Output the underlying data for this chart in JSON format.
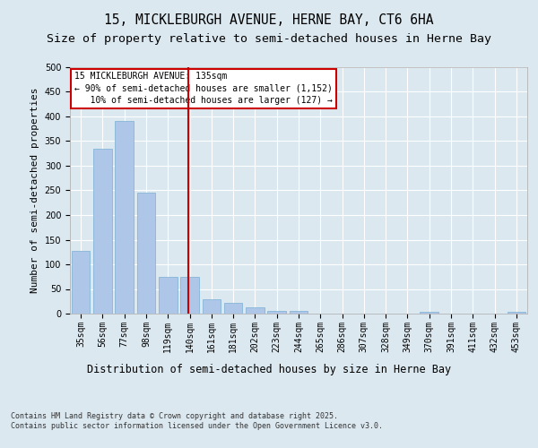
{
  "title1": "15, MICKLEBURGH AVENUE, HERNE BAY, CT6 6HA",
  "title2": "Size of property relative to semi-detached houses in Herne Bay",
  "xlabel": "Distribution of semi-detached houses by size in Herne Bay",
  "ylabel": "Number of semi-detached properties",
  "categories": [
    "35sqm",
    "56sqm",
    "77sqm",
    "98sqm",
    "119sqm",
    "140sqm",
    "161sqm",
    "181sqm",
    "202sqm",
    "223sqm",
    "244sqm",
    "265sqm",
    "286sqm",
    "307sqm",
    "328sqm",
    "349sqm",
    "370sqm",
    "391sqm",
    "411sqm",
    "432sqm",
    "453sqm"
  ],
  "values": [
    127,
    335,
    390,
    245,
    75,
    75,
    30,
    22,
    12,
    5,
    5,
    0,
    0,
    0,
    0,
    0,
    4,
    0,
    0,
    0,
    4
  ],
  "bar_color": "#aec6e8",
  "bar_edge_color": "#7aafd4",
  "vline_color": "#cc0000",
  "vline_x_index": 5,
  "annotation_text": "15 MICKLEBURGH AVENUE: 135sqm\n← 90% of semi-detached houses are smaller (1,152)\n   10% of semi-detached houses are larger (127) →",
  "annotation_box_edgecolor": "#cc0000",
  "background_color": "#dce8f0",
  "ylim": [
    0,
    500
  ],
  "yticks": [
    0,
    50,
    100,
    150,
    200,
    250,
    300,
    350,
    400,
    450,
    500
  ],
  "footer": "Contains HM Land Registry data © Crown copyright and database right 2025.\nContains public sector information licensed under the Open Government Licence v3.0.",
  "title1_fontsize": 10.5,
  "title2_fontsize": 9.5,
  "xlabel_fontsize": 8.5,
  "ylabel_fontsize": 8,
  "tick_fontsize": 7,
  "annotation_fontsize": 7,
  "footer_fontsize": 6
}
